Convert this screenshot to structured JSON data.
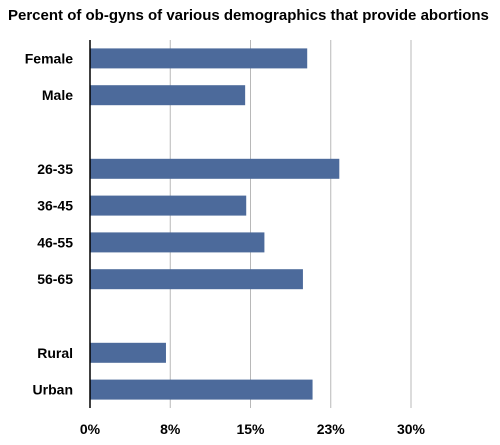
{
  "chart_data": {
    "type": "bar",
    "orientation": "horizontal",
    "title": "Percent of ob-gyns of various demographics that provide abortions",
    "xlabel": "",
    "ylabel": "",
    "categories": [
      "Female",
      "Male",
      "",
      "26-35",
      "36-45",
      "46-55",
      "56-65",
      "",
      "Rural",
      "Urban"
    ],
    "values": [
      20.3,
      14.5,
      null,
      23.3,
      14.6,
      16.3,
      19.9,
      null,
      7.1,
      20.8
    ],
    "xlim": [
      0,
      38
    ],
    "x_ticks": [
      0,
      7.5,
      15,
      22.5,
      30
    ],
    "x_tick_labels": [
      "0%",
      "8%",
      "15%",
      "23%",
      "30%"
    ],
    "grid": true,
    "bar_color": "#4c6a9b"
  }
}
